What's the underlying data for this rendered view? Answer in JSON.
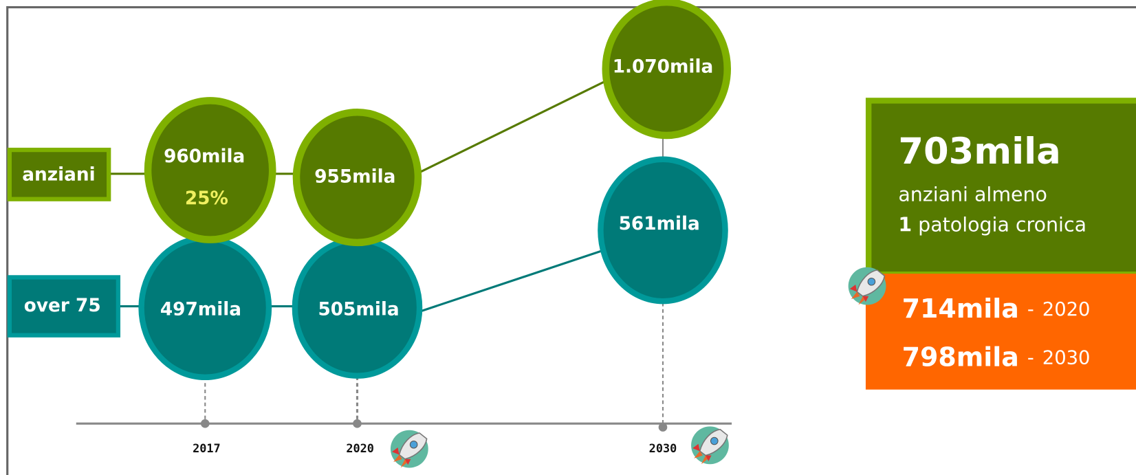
{
  "anziani": {
    "label": "anziani",
    "values": [
      "960mila",
      "955mila",
      "1.070mila"
    ],
    "share": "25%"
  },
  "over75": {
    "label": "over 75",
    "values": [
      "497mila",
      "505mila",
      "561mila"
    ]
  },
  "timeline": {
    "years": [
      "2017",
      "2020",
      "2030"
    ]
  },
  "chronic": {
    "value": "703mila",
    "line1": "anziani almeno",
    "count": "1",
    "line2": "patologia cronica",
    "projections": [
      {
        "value": "714mila",
        "separator": "-",
        "year": "2020"
      },
      {
        "value": "798mila",
        "separator": "-",
        "year": "2030"
      }
    ]
  }
}
